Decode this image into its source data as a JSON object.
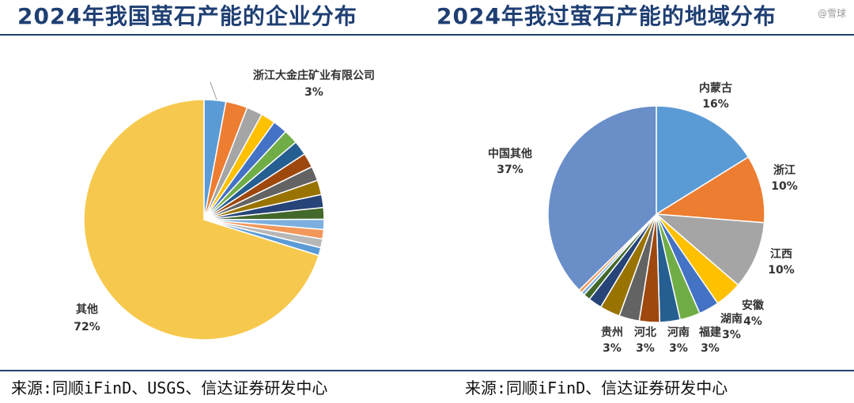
{
  "titles": {
    "left": "2024年我国萤石产能的企业分布",
    "right": "2024年我过萤石产能的地域分布"
  },
  "watermark": "@雪球",
  "sources": {
    "left": "来源:同顺iFinD、USGS、信达证券研发中心",
    "right": "来源:同顺iFinD、信达证券研发中心"
  },
  "chart_data": [
    {
      "type": "pie",
      "title": "2024年我国萤石产能的企业分布",
      "labeled_slices": [
        {
          "label": "浙江大金庄矿业有限公司",
          "value": 3,
          "value_label": "3%"
        },
        {
          "label": "其他",
          "value": 72,
          "value_label": "72%"
        }
      ],
      "unlabeled_slice_values": [
        3.0,
        2.2,
        2.0,
        2.0,
        2.0,
        2.0,
        2.0,
        2.0,
        2.0,
        1.8,
        1.6,
        1.4,
        1.3,
        1.2,
        1.1
      ],
      "colors": [
        "#5b9bd5",
        "#ed7d31",
        "#a5a5a5",
        "#ffc000",
        "#4472c4",
        "#70ad47",
        "#255e91",
        "#9e480e",
        "#636363",
        "#997300",
        "#264478",
        "#43682b",
        "#7cafdd",
        "#f1975a",
        "#b7b7b7",
        "#f6c94e"
      ]
    },
    {
      "type": "pie",
      "title": "2024年我过萤石产能的地域分布",
      "slices": [
        {
          "label": "内蒙古",
          "value": 16,
          "value_label": "16%",
          "color": "#5b9bd5"
        },
        {
          "label": "浙江",
          "value": 10,
          "value_label": "10%",
          "color": "#ed7d31"
        },
        {
          "label": "江西",
          "value": 10,
          "value_label": "10%",
          "color": "#a5a5a5"
        },
        {
          "label": "安徽",
          "value": 4,
          "value_label": "4%",
          "color": "#ffc000"
        },
        {
          "label": "湖南",
          "value": 3,
          "value_label": "3%",
          "color": "#4472c4"
        },
        {
          "label": "福建",
          "value": 3,
          "value_label": "3%",
          "color": "#70ad47"
        },
        {
          "label": "河南",
          "value": 3,
          "value_label": "3%",
          "color": "#255e91"
        },
        {
          "label": "河北",
          "value": 3,
          "value_label": "3%",
          "color": "#9e480e"
        },
        {
          "label": "",
          "value": 3,
          "value_label": "",
          "color": "#636363"
        },
        {
          "label": "贵州",
          "value": 3,
          "value_label": "3%",
          "color": "#997300"
        },
        {
          "label": "",
          "value": 2,
          "value_label": "",
          "color": "#264478"
        },
        {
          "label": "",
          "value": 1,
          "value_label": "",
          "color": "#43682b"
        },
        {
          "label": "",
          "value": 0.5,
          "value_label": "",
          "color": "#7cafdd"
        },
        {
          "label": "",
          "value": 0.5,
          "value_label": "",
          "color": "#f1975a"
        },
        {
          "label": "中国其他",
          "value": 37,
          "value_label": "37%",
          "color": "#6a8fc8"
        }
      ]
    }
  ]
}
